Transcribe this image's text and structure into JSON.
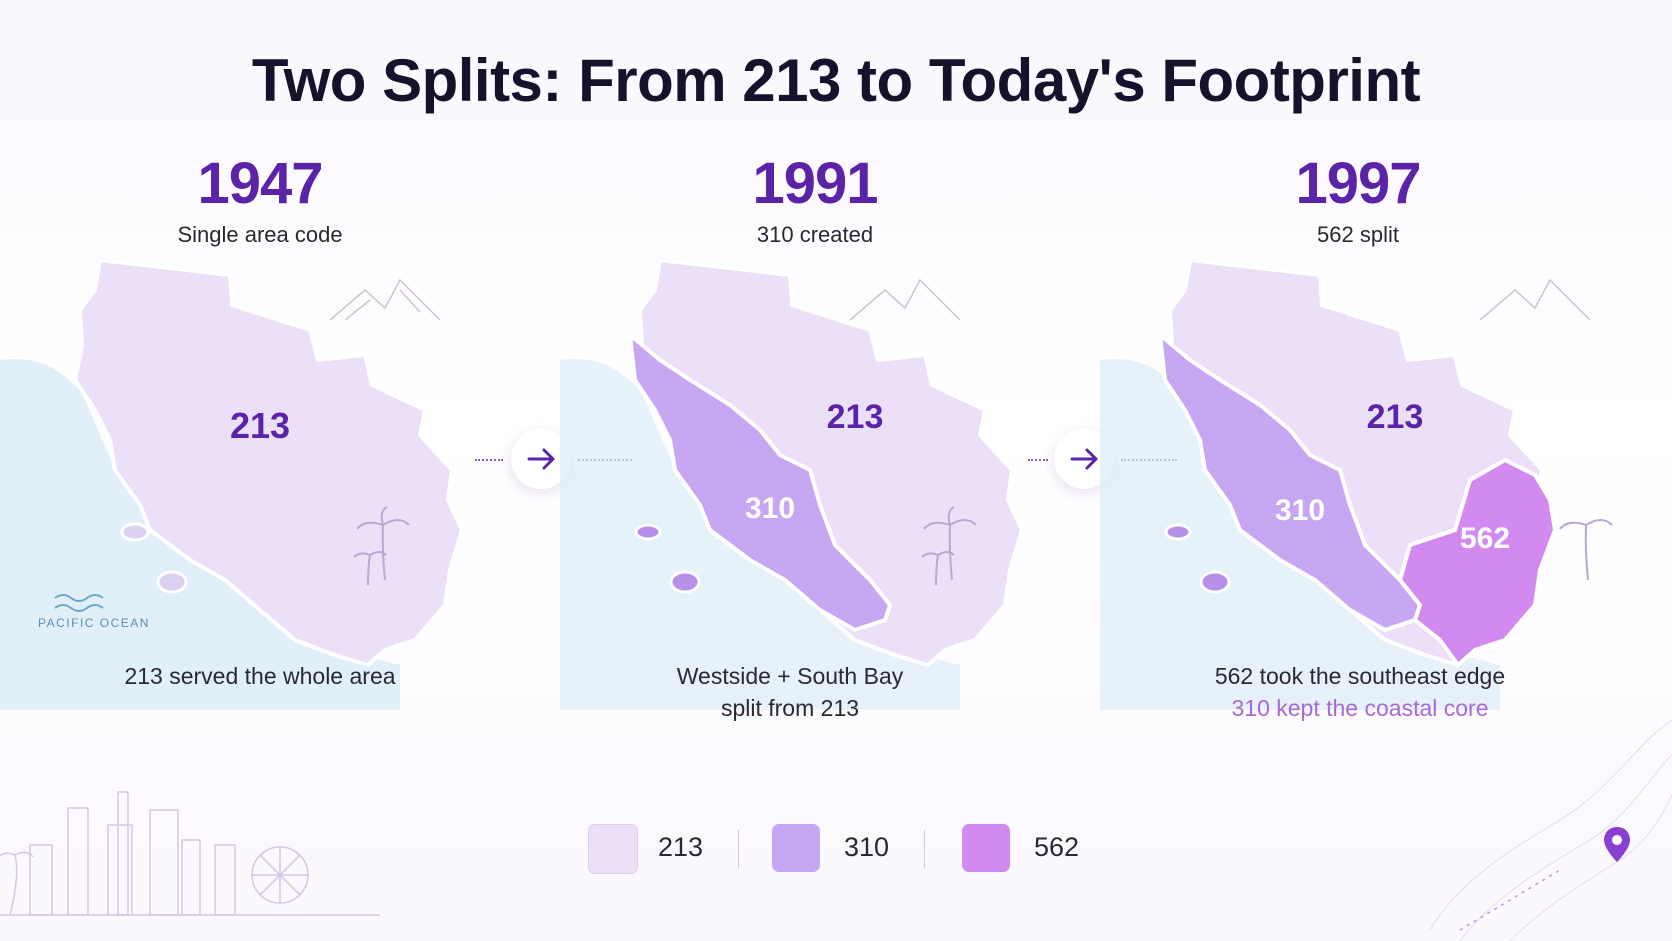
{
  "title": "Two Splits: From 213 to Today's Footprint",
  "colors": {
    "c213": "#ece0f9",
    "c310": "#c7a6f2",
    "c562": "#d38af0",
    "year": "#5b23a8",
    "label_dark": "#5b23a8",
    "ocean": "#dcedf7",
    "accent_text": "#a86ad6"
  },
  "panels": [
    {
      "year": "1947",
      "subtitle": "Single area code",
      "caption_line1": "213 served the whole area",
      "caption_line2": "",
      "areas": [
        {
          "code": "213"
        }
      ],
      "ocean_label": "PACIFIC OCEAN"
    },
    {
      "year": "1991",
      "subtitle": "310 created",
      "caption_line1": "Westside + South Bay",
      "caption_line2": "split from 213",
      "areas": [
        {
          "code": "213"
        },
        {
          "code": "310"
        }
      ]
    },
    {
      "year": "1997",
      "subtitle": "562 split",
      "caption_line1": "562 took the southeast edge",
      "caption_line2": "310 kept the coastal core",
      "areas": [
        {
          "code": "213"
        },
        {
          "code": "310"
        },
        {
          "code": "562"
        }
      ]
    }
  ],
  "legend": [
    {
      "code": "213",
      "color": "#ece0f9"
    },
    {
      "code": "310",
      "color": "#c7a6f2"
    },
    {
      "code": "562",
      "color": "#d38af0"
    }
  ],
  "icons": {
    "transition": "arrow-right-icon",
    "pin": "location-pin-icon",
    "decor": [
      "mountains-icon",
      "palm-tree-icon",
      "skyline-icon",
      "ferris-wheel-icon",
      "waves-icon"
    ]
  }
}
